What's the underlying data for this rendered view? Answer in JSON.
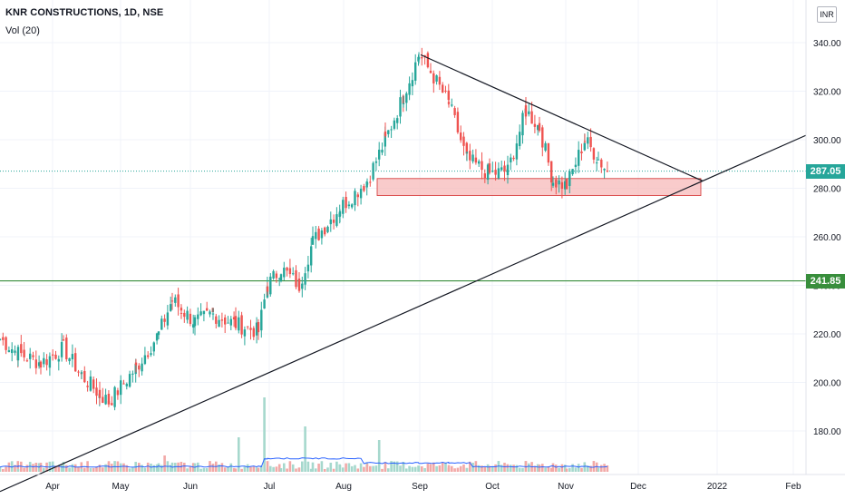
{
  "header": {
    "title": "KNR CONSTRUCTIONS, 1D, NSE",
    "volume_label": "Vol (20)"
  },
  "currency_button": "INR",
  "colors": {
    "up": "#26a69a",
    "down": "#ef5350",
    "volume_up": "#a6d8cd",
    "volume_down": "#f2a9a7",
    "ma_line": "#2962ff",
    "support_line": "#388e3c",
    "zone_fill": "#f7b9b9",
    "zone_border": "#d32f2f",
    "trendline": "#131722"
  },
  "chart_data": {
    "type": "candlestick",
    "x_axis_labels": [
      "Apr",
      "May",
      "Jun",
      "Jul",
      "Aug",
      "Sep",
      "Oct",
      "Nov",
      "Dec",
      "2022",
      "Feb"
    ],
    "y_axis_ticks": [
      180,
      200,
      220,
      240,
      260,
      280,
      300,
      320,
      340
    ],
    "y_range": [
      160,
      346
    ],
    "last_price": 287.05,
    "horizontal_level": 241.85,
    "support_zone": {
      "top": 284,
      "bottom": 277
    },
    "triangle_apex_price": 283,
    "descending_trendline": {
      "from_price": 335,
      "to_price": 283
    },
    "ascending_trendline": {
      "from_price": 170,
      "through_price": 283
    },
    "series_segments": [
      {
        "name": "start",
        "anchors": [
          [
            0,
            218
          ],
          [
            20,
            212
          ],
          [
            45,
            208
          ],
          [
            70,
            214
          ],
          [
            90,
            203
          ],
          [
            110,
            195
          ],
          [
            120,
            192
          ]
        ]
      },
      {
        "name": "rally-may",
        "anchors": [
          [
            120,
            192
          ],
          [
            150,
            206
          ],
          [
            175,
            220
          ],
          [
            190,
            234
          ],
          [
            200,
            230
          ],
          [
            215,
            225
          ],
          [
            235,
            228
          ],
          [
            260,
            224
          ],
          [
            285,
            221
          ]
        ]
      },
      {
        "name": "breakout-jul",
        "anchors": [
          [
            285,
            221
          ],
          [
            295,
            240
          ],
          [
            310,
            247
          ],
          [
            330,
            240
          ],
          [
            345,
            258
          ],
          [
            375,
            272
          ],
          [
            405,
            283
          ],
          [
            425,
            300
          ]
        ]
      },
      {
        "name": "peak-sep",
        "anchors": [
          [
            425,
            300
          ],
          [
            445,
            318
          ],
          [
            462,
            335
          ],
          [
            475,
            328
          ],
          [
            495,
            315
          ],
          [
            515,
            292
          ],
          [
            540,
            286
          ],
          [
            560,
            287
          ],
          [
            580,
            312
          ],
          [
            595,
            305
          ],
          [
            610,
            283
          ],
          [
            625,
            281
          ],
          [
            645,
            300
          ],
          [
            660,
            292
          ],
          [
            670,
            287
          ]
        ]
      }
    ],
    "volume_spikes": [
      [
        182,
        18
      ],
      [
        263,
        38
      ],
      [
        292,
        82
      ],
      [
        337,
        50
      ],
      [
        419,
        35
      ]
    ]
  }
}
